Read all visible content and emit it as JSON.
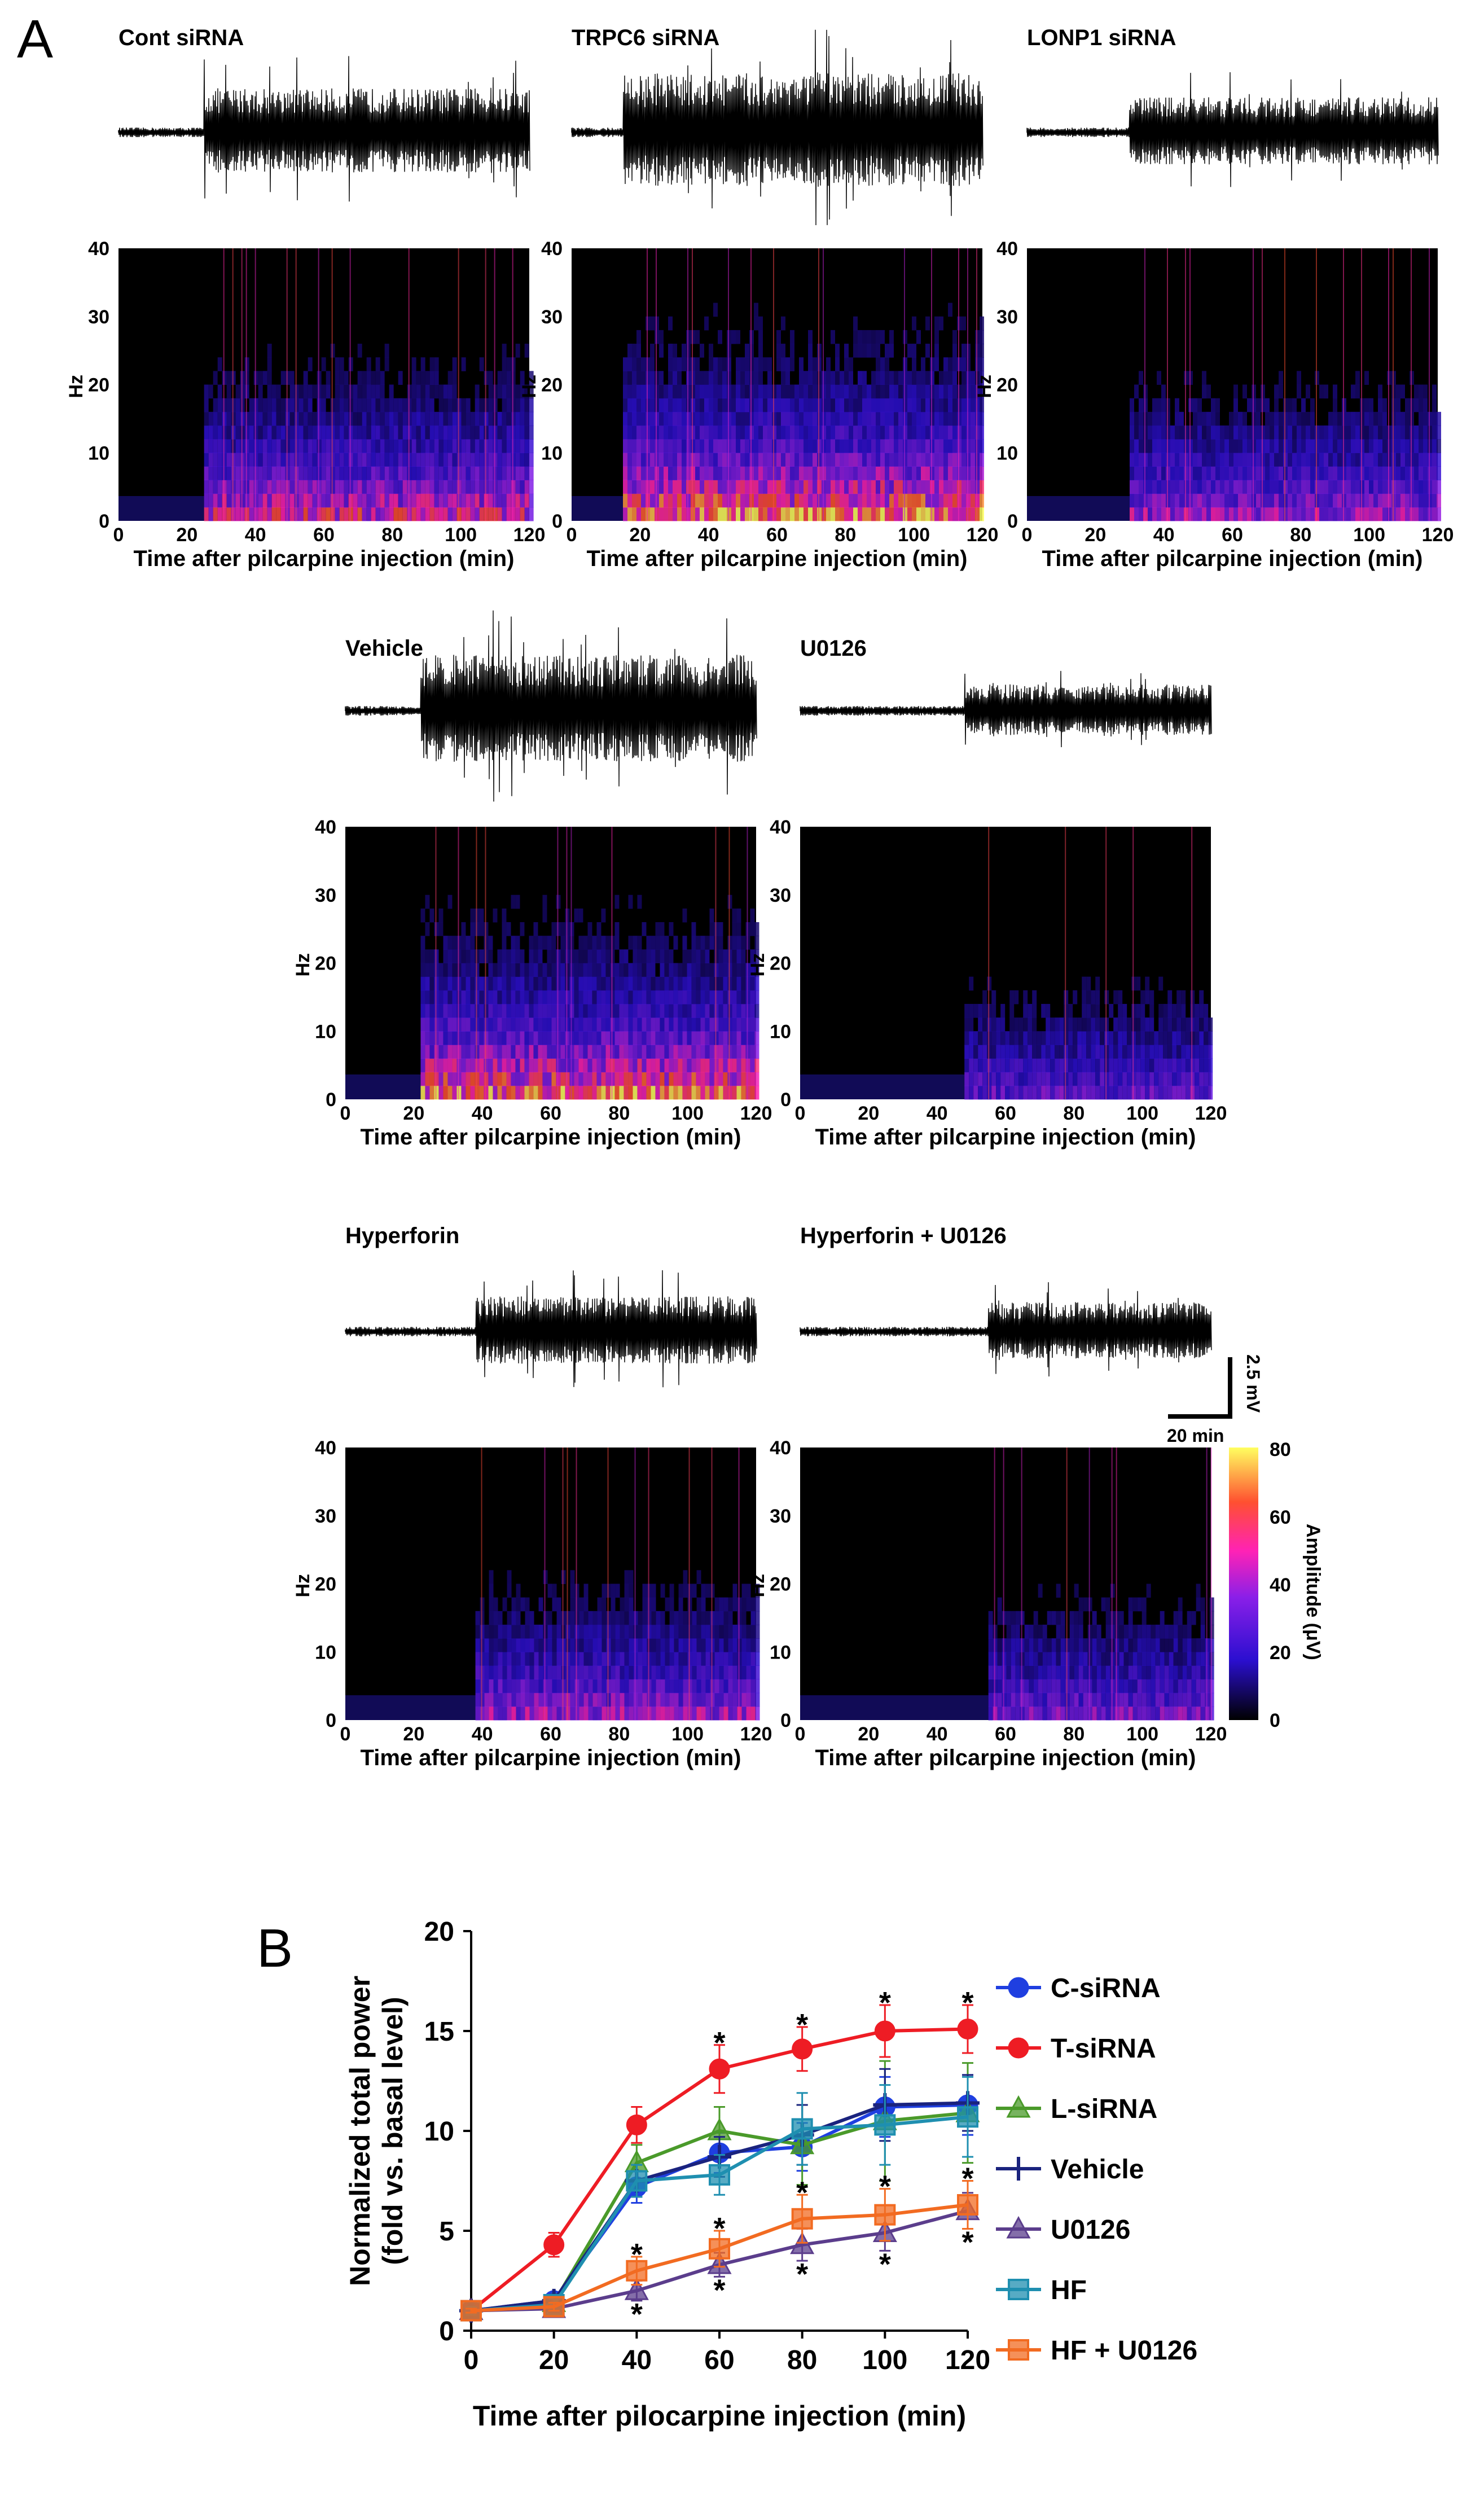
{
  "panel_labels": {
    "a": "A",
    "b": "B"
  },
  "colors": {
    "background": "#ffffff",
    "spectrogram_bg": "#000000",
    "trace": "#000000",
    "c_sirna": "#1f3fe0",
    "t_sirna": "#ee1c24",
    "l_sirna": "#4a9a2a",
    "vehicle": "#1a237e",
    "u0126": "#5b3d8c",
    "hf": "#1f8fb0",
    "hf_u0126": "#f26b21"
  },
  "panel_a": {
    "x_axis_label": "Time after pilcarpine injection (min)",
    "y_axis_label": "Hz",
    "x_ticks": [
      "0",
      "20",
      "40",
      "60",
      "80",
      "100",
      "120"
    ],
    "y_ticks": [
      "0",
      "10",
      "20",
      "30",
      "40"
    ],
    "conditions": [
      {
        "key": "cont",
        "label": "Cont siRNA",
        "onset_min": 25,
        "intensity": 0.75
      },
      {
        "key": "trpc6",
        "label": "TRPC6 siRNA",
        "onset_min": 15,
        "intensity": 1.0
      },
      {
        "key": "lonp1",
        "label": "LONP1 siRNA",
        "onset_min": 30,
        "intensity": 0.6
      },
      {
        "key": "vehicle",
        "label": "Vehicle",
        "onset_min": 22,
        "intensity": 0.95
      },
      {
        "key": "u0126",
        "label": "U0126",
        "onset_min": 48,
        "intensity": 0.45
      },
      {
        "key": "hyperforin",
        "label": "Hyperforin",
        "onset_min": 38,
        "intensity": 0.6
      },
      {
        "key": "hyperforin_u0126",
        "label": "Hyperforin + U0126",
        "onset_min": 55,
        "intensity": 0.5
      }
    ],
    "scale_bar": {
      "vertical": "2.5 mV",
      "horizontal": "20 min"
    },
    "colorbar": {
      "label": "Amplitude (μV)",
      "ticks": [
        "0",
        "20",
        "40",
        "60",
        "80"
      ]
    }
  },
  "chart_data": {
    "type": "line",
    "title": "",
    "xlabel": "Time after pilocarpine injection (min)",
    "ylabel": "Normalized total power (fold vs. basal level)",
    "xlim": [
      0,
      120
    ],
    "ylim": [
      0,
      20
    ],
    "x": [
      0,
      20,
      40,
      60,
      80,
      100,
      120
    ],
    "x_ticks": [
      "0",
      "20",
      "40",
      "60",
      "80",
      "100",
      "120"
    ],
    "y_ticks": [
      "0",
      "5",
      "10",
      "15",
      "20"
    ],
    "legend_position": "right",
    "series": [
      {
        "name": "C-siRNA",
        "marker": "circle",
        "color": "#1f3fe0",
        "values": [
          1.0,
          1.5,
          7.2,
          8.9,
          9.2,
          11.2,
          11.3
        ],
        "errors": [
          0.2,
          0.3,
          0.8,
          1.0,
          1.2,
          1.5,
          1.5
        ]
      },
      {
        "name": "T-siRNA",
        "marker": "circle",
        "color": "#ee1c24",
        "values": [
          1.0,
          4.3,
          10.3,
          13.1,
          14.1,
          15.0,
          15.1
        ],
        "errors": [
          0.2,
          0.6,
          0.9,
          1.2,
          1.1,
          1.3,
          1.2
        ]
      },
      {
        "name": "L-siRNA",
        "marker": "triangle",
        "color": "#4a9a2a",
        "values": [
          1.0,
          1.4,
          8.4,
          10.0,
          9.3,
          10.5,
          10.9
        ],
        "errors": [
          0.2,
          0.3,
          0.9,
          1.2,
          2.0,
          3.0,
          2.5
        ]
      },
      {
        "name": "Vehicle",
        "marker": "plus",
        "color": "#1a237e",
        "values": [
          1.0,
          1.5,
          7.5,
          8.7,
          9.8,
          11.3,
          11.4
        ],
        "errors": [
          0.2,
          0.3,
          0.8,
          1.0,
          1.5,
          1.8,
          1.4
        ]
      },
      {
        "name": "U0126",
        "marker": "triangle",
        "color": "#5b3d8c",
        "values": [
          1.0,
          1.1,
          2.0,
          3.3,
          4.3,
          4.9,
          6.0
        ],
        "errors": [
          0.1,
          0.2,
          0.5,
          0.6,
          0.8,
          0.9,
          0.9
        ]
      },
      {
        "name": "HF",
        "marker": "square",
        "color": "#1f8fb0",
        "values": [
          1.0,
          1.3,
          7.5,
          7.8,
          10.1,
          10.3,
          10.7
        ],
        "errors": [
          0.2,
          0.3,
          0.8,
          1.0,
          1.8,
          2.0,
          2.0
        ]
      },
      {
        "name": "HF + U0126",
        "marker": "square",
        "color": "#f26b21",
        "values": [
          1.0,
          1.2,
          3.0,
          4.1,
          5.6,
          5.8,
          6.3
        ],
        "errors": [
          0.1,
          0.2,
          0.7,
          0.9,
          1.2,
          1.3,
          1.2
        ]
      }
    ],
    "significance": [
      {
        "x": 40,
        "position": "above",
        "ref_value": 3.7,
        "label": "*"
      },
      {
        "x": 40,
        "position": "below",
        "ref_value": 1.5,
        "label": "*"
      },
      {
        "x": 60,
        "position": "above",
        "ref_value": 14.3,
        "label": "*"
      },
      {
        "x": 60,
        "position": "above",
        "ref_value": 5.0,
        "label": "*"
      },
      {
        "x": 60,
        "position": "below",
        "ref_value": 2.7,
        "label": "*"
      },
      {
        "x": 80,
        "position": "above",
        "ref_value": 15.2,
        "label": "*"
      },
      {
        "x": 80,
        "position": "above",
        "ref_value": 6.8,
        "label": "*"
      },
      {
        "x": 80,
        "position": "below",
        "ref_value": 3.5,
        "label": "*"
      },
      {
        "x": 100,
        "position": "above",
        "ref_value": 16.3,
        "label": "*"
      },
      {
        "x": 100,
        "position": "above",
        "ref_value": 7.1,
        "label": "*"
      },
      {
        "x": 100,
        "position": "below",
        "ref_value": 4.0,
        "label": "*"
      },
      {
        "x": 120,
        "position": "above",
        "ref_value": 16.3,
        "label": "*"
      },
      {
        "x": 120,
        "position": "above",
        "ref_value": 7.5,
        "label": "*"
      },
      {
        "x": 120,
        "position": "below",
        "ref_value": 5.1,
        "label": "*"
      }
    ]
  }
}
